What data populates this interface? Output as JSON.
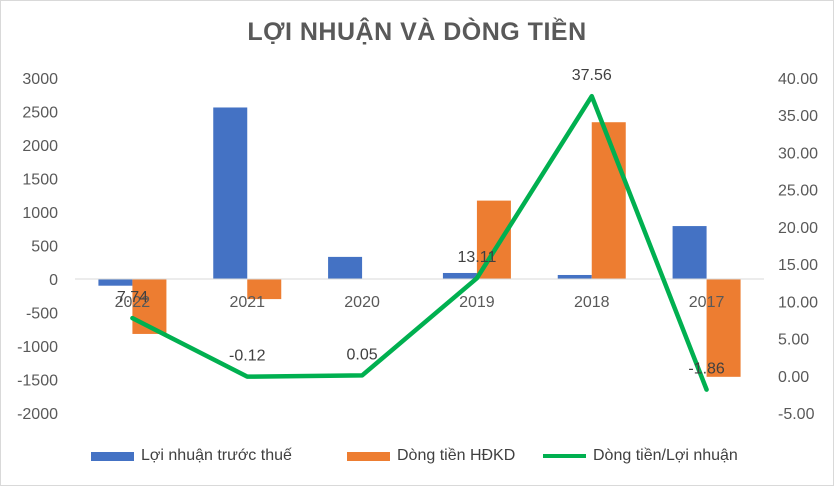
{
  "chart_data": {
    "type": "bar+line",
    "title": "LỢI NHUẬN VÀ DÒNG TIỀN",
    "categories": [
      "2022",
      "2021",
      "2020",
      "2019",
      "2018",
      "2017"
    ],
    "series": [
      {
        "name": "Lợi nhuận trước thuế",
        "type": "bar",
        "axis": "left",
        "color": "#4472c4",
        "values": [
          -100,
          2560,
          330,
          90,
          60,
          790
        ]
      },
      {
        "name": "Dòng tiền HĐKD",
        "type": "bar",
        "axis": "left",
        "color": "#ed7d31",
        "values": [
          -820,
          -300,
          0,
          1170,
          2340,
          -1460
        ]
      },
      {
        "name": "Dòng tiền/Lợi nhuận",
        "type": "line",
        "axis": "right",
        "color": "#00b050",
        "values": [
          7.74,
          -0.12,
          0.05,
          13.11,
          37.56,
          -1.86
        ],
        "labels": [
          "7.74",
          "-0.12",
          "0.05",
          "13.11",
          "37.56",
          "-1.86"
        ]
      }
    ],
    "y_left": {
      "min": -2000,
      "max": 3000,
      "step": 500,
      "ticks": [
        "3000",
        "2500",
        "2000",
        "1500",
        "1000",
        "500",
        "0",
        "-500",
        "-1000",
        "-1500",
        "-2000"
      ]
    },
    "y_right": {
      "min": -5,
      "max": 40,
      "step": 5,
      "ticks": [
        "40.00",
        "35.00",
        "30.00",
        "25.00",
        "20.00",
        "15.00",
        "10.00",
        "5.00",
        "0.00",
        "-5.00"
      ]
    },
    "grid": false,
    "legend_position": "bottom"
  }
}
